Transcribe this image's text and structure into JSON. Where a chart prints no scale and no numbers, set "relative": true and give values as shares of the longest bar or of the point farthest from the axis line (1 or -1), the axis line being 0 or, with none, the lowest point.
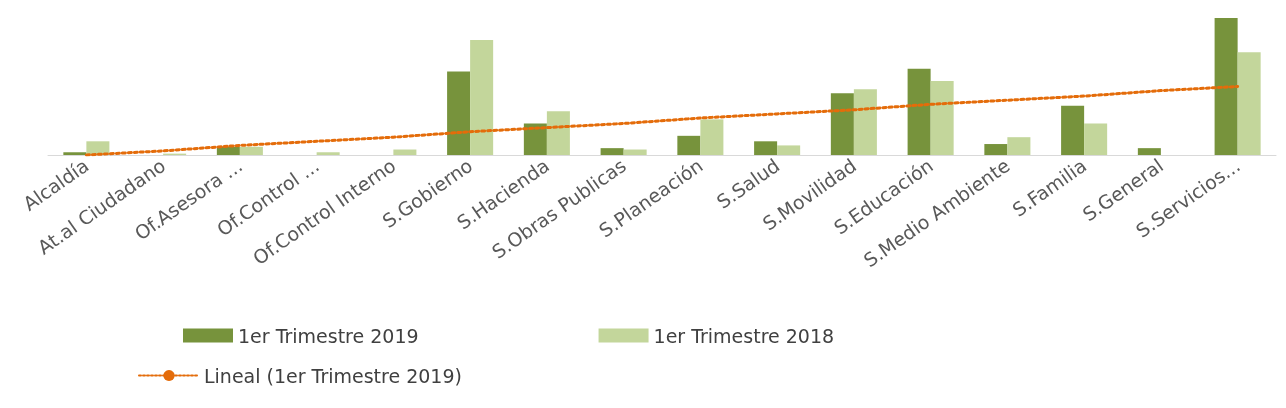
{
  "chart_data": {
    "type": "bar",
    "relative": true,
    "categories": [
      "Alcaldía",
      "At.al Ciudadano",
      "Of.Asesora ...",
      "Of.Control ...",
      "Of.Control Interno",
      "S.Gobierno",
      "S.Hacienda",
      "S.Obras Publicas",
      "S.Planeación",
      "S.Salud",
      "S.Movilidad",
      "S.Educación",
      "S.Medio Ambiente",
      "S.Familia",
      "S.General",
      "S.Servicios..."
    ],
    "series": [
      {
        "name": "1er Trimestre 2019",
        "color": "#77933c",
        "values": [
          0.02,
          0,
          0.06,
          0,
          0,
          0.61,
          0.23,
          0.05,
          0.14,
          0.1,
          0.45,
          0.63,
          0.08,
          0.36,
          0.05,
          1
        ]
      },
      {
        "name": "1er Trimestre 2018",
        "color": "#c3d69b",
        "values": [
          0.1,
          0.01,
          0.06,
          0.02,
          0.04,
          0.84,
          0.32,
          0.04,
          0.26,
          0.07,
          0.48,
          0.54,
          0.13,
          0.23,
          0,
          0.75
        ]
      },
      {
        "name": "Lineal (1er Trimestre 2019)",
        "type": "line",
        "color": "#e46c0a",
        "line_style": "dotted",
        "marker": "none",
        "values": [
          0,
          0.03,
          0.07,
          0.1,
          0.13,
          0.17,
          0.2,
          0.23,
          0.27,
          0.3,
          0.33,
          0.37,
          0.4,
          0.43,
          0.47,
          0.5
        ]
      }
    ],
    "legend": "bottom"
  }
}
